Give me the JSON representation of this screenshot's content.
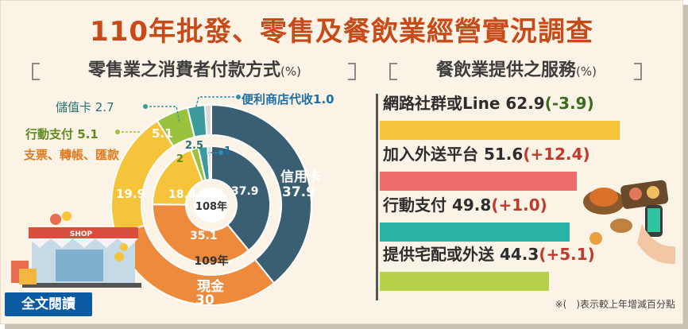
{
  "title": "110年批發、零售及餐飲業經營實況調查",
  "left_section": {
    "title": "零售業之消費者付款方式",
    "unit": "(%)"
  },
  "right_section": {
    "title": "餐飲業提供之服務",
    "unit": "(%)"
  },
  "footnote": "※(　)表示較上年增減百分點",
  "read_full_button": "全文閱讀",
  "colors": {
    "title": "#c84a19",
    "credit_card": "#3a5f72",
    "cash": "#ee8a3c",
    "cheque": "#f5c43b",
    "mobile_pay": "#9bc23e",
    "stored_value": "#3b9a9c",
    "convenience_store": "#d9d9d9",
    "bar_line": "#f5c43b",
    "bar_delivery": "#f06b6b",
    "bar_mobile": "#2bb3a6",
    "bar_homedelivery": "#b7d14c"
  },
  "chart_data": [
    {
      "type": "pie",
      "subtype": "nested-donut",
      "title": "零售業之消費者付款方式",
      "unit": "%",
      "rings": [
        {
          "name": "109年",
          "slices": [
            {
              "label": "信用卡",
              "value": 37.9
            },
            {
              "label": "現金",
              "value": 30.0
            },
            {
              "label": "支票、轉帳、匯款",
              "value": 19.9
            },
            {
              "label": "行動支付",
              "value": 5.1
            },
            {
              "label": "儲值卡",
              "value": 2.7
            },
            {
              "label": "便利商店代收",
              "value": 1.0
            }
          ]
        },
        {
          "name": "108年",
          "slices": [
            {
              "label": "信用卡",
              "value": 37.9
            },
            {
              "label": "現金",
              "value": 35.1
            },
            {
              "label": "支票、轉帳、匯款",
              "value": 18.6
            },
            {
              "label": "行動支付",
              "value": 2.0
            },
            {
              "label": "儲值卡",
              "value": 2.5
            },
            {
              "label": "便利商店代收",
              "value": 1.0
            }
          ]
        }
      ],
      "callouts": {
        "stored_value": "儲值卡 2.7",
        "mobile_pay": "行動支付 5.1",
        "cheque": "支票、轉帳、匯款",
        "convenience_store": "便利商店代收1.0",
        "credit_card_name": "信用卡",
        "cash_name": "現金"
      }
    },
    {
      "type": "bar",
      "orientation": "horizontal",
      "title": "餐飲業提供之服務",
      "unit": "%",
      "xlim": [
        0,
        70
      ],
      "categories": [
        "網路社群或Line",
        "加入外送平台",
        "行動支付",
        "提供宅配或外送"
      ],
      "values": [
        62.9,
        51.6,
        49.8,
        44.3
      ],
      "changes": [
        "(-3.9)",
        "(+12.4)",
        "(+1.0)",
        "(+5.1)"
      ]
    }
  ],
  "bar_values_text": [
    "62.9",
    "51.6",
    "49.8",
    "44.3"
  ],
  "illustration_labels": {
    "shop_sign": "SHOP"
  }
}
